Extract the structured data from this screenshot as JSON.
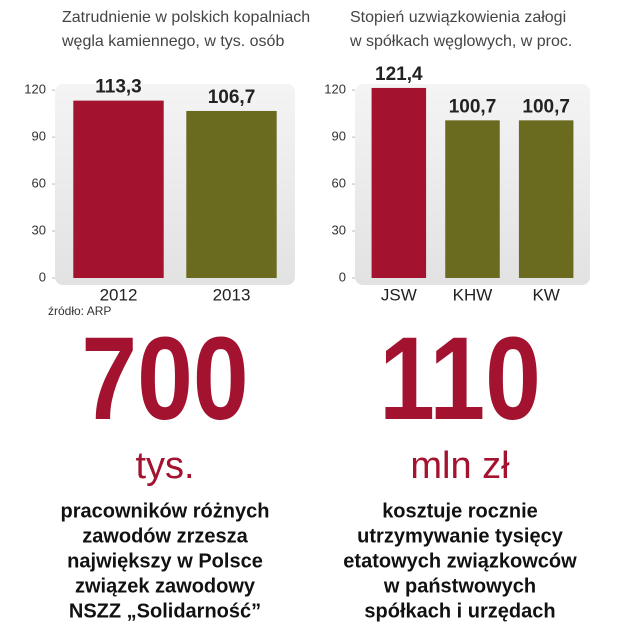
{
  "chart_data": [
    {
      "type": "bar",
      "title": [
        "Zatrudnienie w polskich kopalniach",
        "węgla kamiennego, w tys. osób"
      ],
      "categories": [
        "2012",
        "2013"
      ],
      "values": [
        113.3,
        106.7
      ],
      "value_labels": [
        "113,3",
        "106,7"
      ],
      "colors": [
        "#a3122f",
        "#6b6b1f"
      ],
      "ylim": [
        0,
        122
      ],
      "yticks": [
        0,
        30,
        60,
        90,
        120
      ],
      "source": "źródło: ARP"
    },
    {
      "type": "bar",
      "title": [
        "Stopień uzwiązkowienia załogi",
        "w spółkach węglowych, w proc."
      ],
      "categories": [
        "JSW",
        "KHW",
        "KW"
      ],
      "values": [
        121.4,
        100.7,
        100.7
      ],
      "value_labels": [
        "121,4",
        "100,7",
        "100,7"
      ],
      "colors": [
        "#a3122f",
        "#6b6b1f",
        "#6b6b1f"
      ],
      "ylim": [
        0,
        122
      ],
      "yticks": [
        0,
        30,
        60,
        90,
        120
      ]
    }
  ],
  "facts": [
    {
      "number": 700,
      "unit": "tys.",
      "lines": [
        "pracowników różnych",
        "zawodów zrzesza",
        "największy w Polsce",
        "związek zawodowy",
        "NSZZ „Solidarność”"
      ]
    },
    {
      "number": 110,
      "unit": "mln zł",
      "lines": [
        "kosztuje rocznie",
        "utrzymywanie tysięcy",
        "etatowych związkowców",
        "w państwowych",
        "spółkach i urzędach"
      ]
    }
  ]
}
